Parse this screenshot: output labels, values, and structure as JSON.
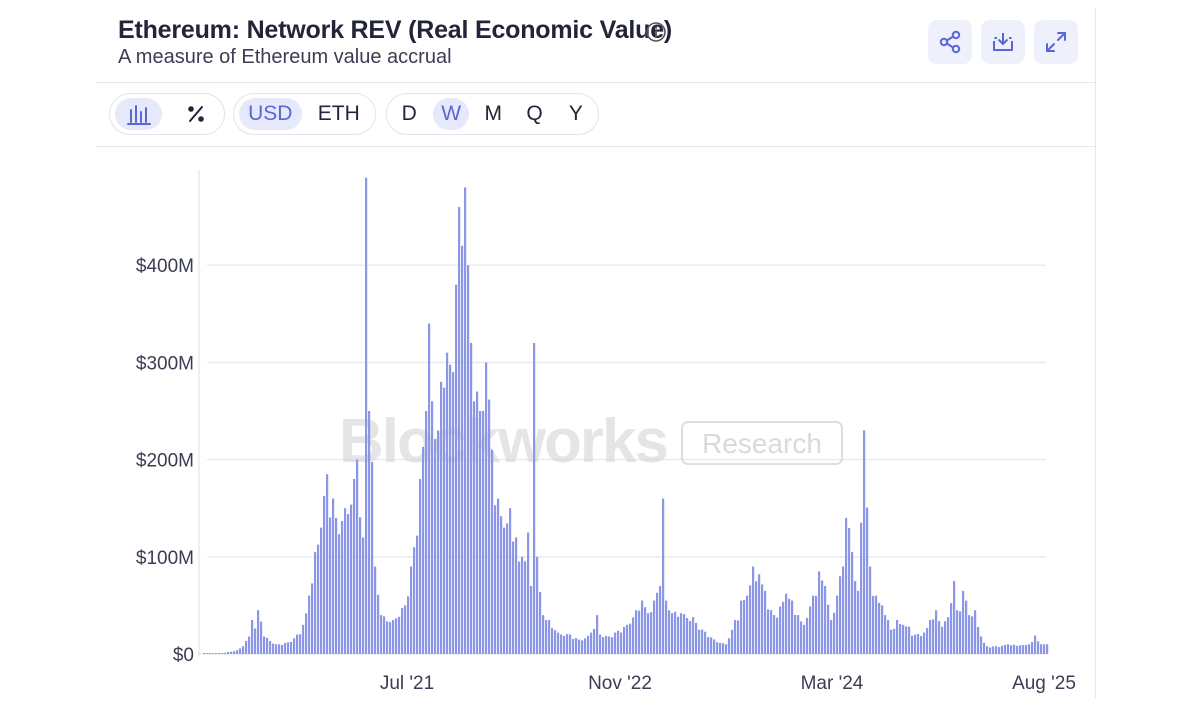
{
  "header": {
    "title": "Ethereum: Network REV (Real Economic Value)",
    "subtitle": "A measure of Ethereum value accrual",
    "actions": [
      {
        "name": "share-button",
        "icon": "share-icon"
      },
      {
        "name": "download-button",
        "icon": "download-icon"
      },
      {
        "name": "expand-button",
        "icon": "expand-icon"
      }
    ]
  },
  "controls": {
    "chart_type": {
      "icons": [
        "bar-chart-icon",
        "percent-icon"
      ],
      "active": 0
    },
    "currency": {
      "options": [
        "USD",
        "ETH"
      ],
      "active": "USD"
    },
    "interval": {
      "options": [
        "D",
        "W",
        "M",
        "Q",
        "Y"
      ],
      "active": "W"
    }
  },
  "watermark": {
    "brand": "Blockworks",
    "tag": "Research"
  },
  "colors": {
    "bar": "#8c96e6",
    "accent": "#5b66d6",
    "grid": "#e8e9ef",
    "button_bg": "#eef0fb"
  },
  "chart_data": {
    "type": "bar",
    "title": "Ethereum: Network REV (Real Economic Value)",
    "subtitle": "A measure of Ethereum value accrual",
    "xlabel": "",
    "ylabel": "",
    "unit": "USD",
    "interval": "weekly",
    "x_range": [
      "2020-01",
      "2025-08"
    ],
    "ylim": [
      0,
      500
    ],
    "y_ticks": [
      {
        "value": 0,
        "label": "$0"
      },
      {
        "value": 100,
        "label": "$100M"
      },
      {
        "value": 200,
        "label": "$200M"
      },
      {
        "value": 300,
        "label": "$300M"
      },
      {
        "value": 400,
        "label": "$400M"
      }
    ],
    "x_ticks": [
      "Jul '21",
      "Nov '22",
      "Mar '24",
      "Aug '25"
    ],
    "grid": true,
    "series": [
      {
        "name": "Network REV (USD M)",
        "keyframes": [
          [
            0.0,
            1
          ],
          [
            0.035,
            1
          ],
          [
            0.045,
            2
          ],
          [
            0.06,
            4
          ],
          [
            0.07,
            8
          ],
          [
            0.08,
            18
          ],
          [
            0.088,
            35
          ],
          [
            0.095,
            22
          ],
          [
            0.1,
            45
          ],
          [
            0.11,
            18
          ],
          [
            0.13,
            10
          ],
          [
            0.15,
            12
          ],
          [
            0.17,
            20
          ],
          [
            0.18,
            30
          ],
          [
            0.19,
            60
          ],
          [
            0.2,
            105
          ],
          [
            0.21,
            130
          ],
          [
            0.22,
            185
          ],
          [
            0.232,
            160
          ],
          [
            0.24,
            140
          ],
          [
            0.255,
            150
          ],
          [
            0.27,
            180
          ],
          [
            0.278,
            200
          ],
          [
            0.285,
            120
          ],
          [
            0.29,
            490
          ],
          [
            0.3,
            250
          ],
          [
            0.31,
            90
          ],
          [
            0.32,
            40
          ],
          [
            0.34,
            35
          ],
          [
            0.36,
            50
          ],
          [
            0.375,
            90
          ],
          [
            0.39,
            180
          ],
          [
            0.4,
            250
          ],
          [
            0.405,
            340
          ],
          [
            0.41,
            260
          ],
          [
            0.42,
            230
          ],
          [
            0.43,
            280
          ],
          [
            0.44,
            310
          ],
          [
            0.45,
            290
          ],
          [
            0.455,
            380
          ],
          [
            0.46,
            460
          ],
          [
            0.465,
            420
          ],
          [
            0.47,
            480
          ],
          [
            0.475,
            400
          ],
          [
            0.48,
            320
          ],
          [
            0.49,
            270
          ],
          [
            0.5,
            250
          ],
          [
            0.51,
            300
          ],
          [
            0.52,
            210
          ],
          [
            0.53,
            160
          ],
          [
            0.54,
            130
          ],
          [
            0.55,
            150
          ],
          [
            0.56,
            120
          ],
          [
            0.57,
            95
          ],
          [
            0.575,
            100
          ],
          [
            0.585,
            125
          ],
          [
            0.59,
            70
          ],
          [
            0.595,
            320
          ],
          [
            0.6,
            100
          ],
          [
            0.61,
            40
          ],
          [
            0.62,
            35
          ],
          [
            0.64,
            22
          ],
          [
            0.66,
            20
          ],
          [
            0.68,
            14
          ],
          [
            0.7,
            22
          ],
          [
            0.71,
            40
          ],
          [
            0.715,
            20
          ],
          [
            0.73,
            18
          ],
          [
            0.76,
            30
          ],
          [
            0.78,
            45
          ],
          [
            0.79,
            55
          ],
          [
            0.8,
            42
          ],
          [
            0.81,
            55
          ],
          [
            0.82,
            70
          ],
          [
            0.825,
            85
          ],
          [
            0.83,
            160
          ],
          [
            0.835,
            55
          ],
          [
            0.84,
            45
          ],
          [
            0.86,
            42
          ],
          [
            0.88,
            38
          ],
          [
            0.9,
            25
          ],
          [
            0.92,
            15
          ],
          [
            0.94,
            10
          ],
          [
            0.96,
            35
          ],
          [
            0.97,
            55
          ],
          [
            0.98,
            60
          ],
          [
            0.99,
            90
          ],
          [
            1.0,
            82
          ],
          [
            1.01,
            65
          ],
          [
            1.02,
            45
          ],
          [
            1.03,
            40
          ],
          [
            1.05,
            62
          ],
          [
            1.06,
            55
          ],
          [
            1.07,
            40
          ],
          [
            1.08,
            30
          ],
          [
            1.1,
            60
          ],
          [
            1.11,
            85
          ],
          [
            1.12,
            70
          ],
          [
            1.13,
            35
          ],
          [
            1.14,
            60
          ],
          [
            1.15,
            90
          ],
          [
            1.16,
            140
          ],
          [
            1.17,
            105
          ],
          [
            1.175,
            75
          ],
          [
            1.18,
            65
          ],
          [
            1.19,
            230
          ],
          [
            1.2,
            90
          ],
          [
            1.21,
            60
          ],
          [
            1.22,
            50
          ],
          [
            1.23,
            40
          ],
          [
            1.24,
            25
          ],
          [
            1.25,
            35
          ],
          [
            1.26,
            30
          ],
          [
            1.27,
            28
          ],
          [
            1.28,
            20
          ],
          [
            1.3,
            22
          ],
          [
            1.31,
            35
          ],
          [
            1.32,
            45
          ],
          [
            1.33,
            28
          ],
          [
            1.34,
            38
          ],
          [
            1.35,
            75
          ],
          [
            1.36,
            45
          ],
          [
            1.37,
            65
          ],
          [
            1.38,
            40
          ],
          [
            1.39,
            45
          ],
          [
            1.4,
            18
          ],
          [
            1.41,
            8
          ],
          [
            1.43,
            8
          ],
          [
            1.45,
            10
          ],
          [
            1.47,
            9
          ],
          [
            1.49,
            10
          ],
          [
            1.5,
            19
          ],
          [
            1.51,
            10
          ],
          [
            1.52,
            10
          ]
        ]
      }
    ]
  }
}
